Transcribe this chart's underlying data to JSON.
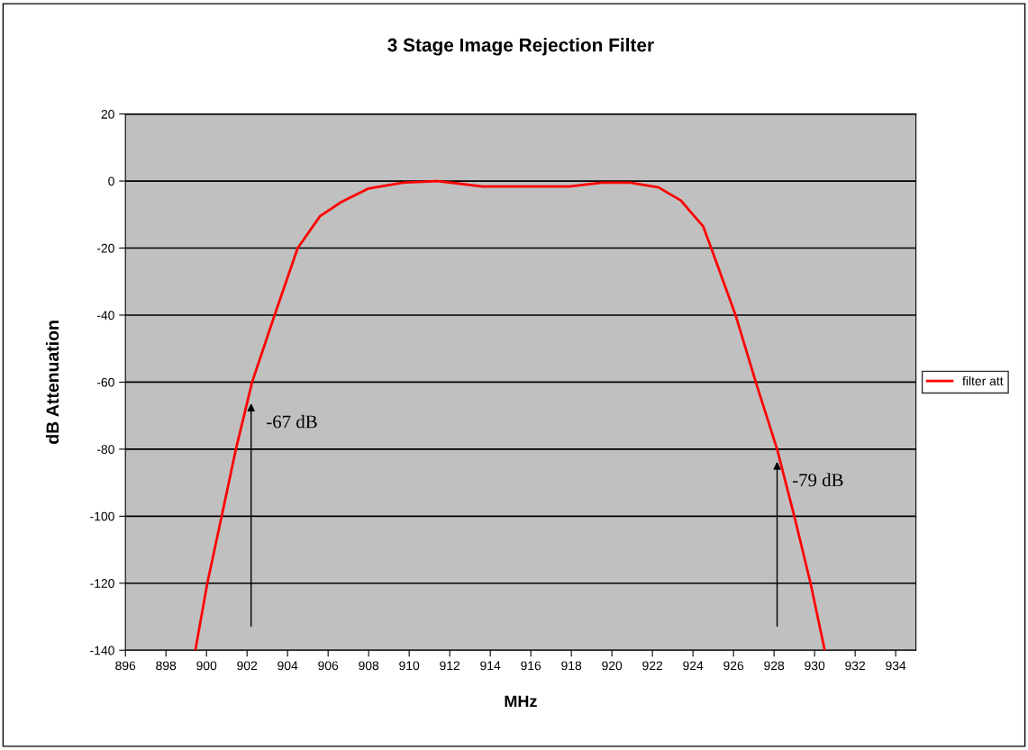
{
  "chart_data": {
    "type": "line",
    "title": "3 Stage Image Rejection Filter",
    "xlabel": "MHz",
    "ylabel": "dB Attenuation",
    "series": [
      {
        "name": "filter att",
        "color": "#ff0000",
        "x": [
          899.45,
          900.04,
          900.75,
          901.45,
          902.25,
          903.36,
          904.5,
          905.6,
          906.64,
          908.0,
          909.7,
          911.4,
          913.6,
          915.6,
          917.9,
          919.5,
          920.9,
          922.3,
          923.4,
          924.5,
          924.9,
          926.1,
          927.1,
          928.15,
          929.0,
          929.8,
          930.5
        ],
        "values": [
          -140,
          -120,
          -100,
          -80,
          -60,
          -40,
          -20,
          -10.5,
          -6.3,
          -2.2,
          -0.5,
          0,
          -1.6,
          -1.6,
          -1.6,
          -0.5,
          -0.5,
          -1.9,
          -5.8,
          -13.5,
          -20,
          -40,
          -60,
          -80,
          -100,
          -120,
          -140
        ]
      }
    ],
    "xlim": [
      896,
      935
    ],
    "xticks": [
      896,
      898,
      900,
      902,
      904,
      906,
      908,
      910,
      912,
      914,
      916,
      918,
      920,
      922,
      924,
      926,
      928,
      930,
      932,
      934
    ],
    "ylim": [
      -140,
      20
    ],
    "yticks": [
      20,
      0,
      -20,
      -40,
      -60,
      -80,
      -100,
      -120,
      -140
    ],
    "grid": "y",
    "legend": "right",
    "line_style": "solid",
    "marker": "none",
    "annotations": [
      {
        "text": "-67 dB",
        "x": 902.2,
        "y": -65.6
      },
      {
        "text": "-79 dB",
        "x": 928.15,
        "y": -83
      }
    ]
  }
}
